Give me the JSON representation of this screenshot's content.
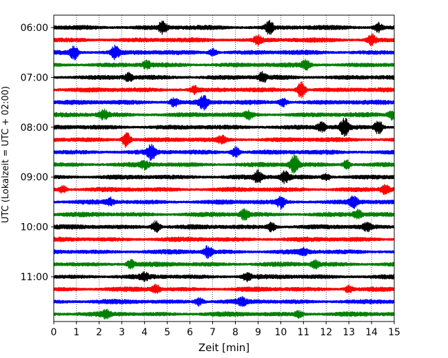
{
  "chart_data": {
    "type": "line",
    "subtype": "helicorder-seismogram",
    "xlabel": "Zeit  [min]",
    "ylabel": "UTC (Lokalzeit = UTC + 02:00)",
    "xlim": [
      0,
      15
    ],
    "x_ticks": [
      "0",
      "1",
      "2",
      "3",
      "4",
      "5",
      "6",
      "7",
      "8",
      "9",
      "10",
      "11",
      "12",
      "13",
      "14",
      "15"
    ],
    "y_ticks": [
      "06:00",
      "07:00",
      "08:00",
      "09:00",
      "10:00",
      "11:00"
    ],
    "trace_interval_min": 15,
    "first_trace_utc": "06:00",
    "trace_count": 24,
    "trace_colors": [
      "#000000",
      "#ff0000",
      "#0000ff",
      "#008000"
    ],
    "vertical_gridlines": "dotted, every 1 min",
    "events": [
      {
        "trace": 0,
        "min": 4.8,
        "amp": 1.4
      },
      {
        "trace": 0,
        "min": 9.5,
        "amp": 1.5
      },
      {
        "trace": 0,
        "min": 14.3,
        "amp": 1.0
      },
      {
        "trace": 1,
        "min": 9.0,
        "amp": 0.9
      },
      {
        "trace": 1,
        "min": 14.0,
        "amp": 1.2
      },
      {
        "trace": 2,
        "min": 0.9,
        "amp": 1.6
      },
      {
        "trace": 2,
        "min": 2.7,
        "amp": 1.4
      },
      {
        "trace": 2,
        "min": 7.0,
        "amp": 0.8
      },
      {
        "trace": 3,
        "min": 4.1,
        "amp": 0.8
      },
      {
        "trace": 3,
        "min": 11.1,
        "amp": 1.0
      },
      {
        "trace": 4,
        "min": 3.3,
        "amp": 0.9
      },
      {
        "trace": 4,
        "min": 9.2,
        "amp": 1.0
      },
      {
        "trace": 5,
        "min": 10.9,
        "amp": 2.0
      },
      {
        "trace": 5,
        "min": 6.2,
        "amp": 0.8
      },
      {
        "trace": 6,
        "min": 6.6,
        "amp": 1.5
      },
      {
        "trace": 6,
        "min": 5.3,
        "amp": 1.0
      },
      {
        "trace": 6,
        "min": 10.1,
        "amp": 0.9
      },
      {
        "trace": 7,
        "min": 2.2,
        "amp": 1.0
      },
      {
        "trace": 7,
        "min": 14.9,
        "amp": 1.1
      },
      {
        "trace": 7,
        "min": 8.6,
        "amp": 0.8
      },
      {
        "trace": 8,
        "min": 12.8,
        "amp": 2.2
      },
      {
        "trace": 8,
        "min": 14.3,
        "amp": 1.6
      },
      {
        "trace": 8,
        "min": 11.8,
        "amp": 1.0
      },
      {
        "trace": 9,
        "min": 3.2,
        "amp": 1.8
      },
      {
        "trace": 9,
        "min": 7.4,
        "amp": 0.8
      },
      {
        "trace": 10,
        "min": 4.3,
        "amp": 1.6
      },
      {
        "trace": 10,
        "min": 8.0,
        "amp": 1.2
      },
      {
        "trace": 11,
        "min": 10.6,
        "amp": 2.2
      },
      {
        "trace": 11,
        "min": 12.9,
        "amp": 1.0
      },
      {
        "trace": 11,
        "min": 4.0,
        "amp": 0.8
      },
      {
        "trace": 12,
        "min": 9.0,
        "amp": 1.4
      },
      {
        "trace": 12,
        "min": 10.2,
        "amp": 1.3
      },
      {
        "trace": 12,
        "min": 12.0,
        "amp": 0.8
      },
      {
        "trace": 13,
        "min": 14.6,
        "amp": 1.0
      },
      {
        "trace": 13,
        "min": 0.4,
        "amp": 0.8
      },
      {
        "trace": 14,
        "min": 10.0,
        "amp": 1.3
      },
      {
        "trace": 14,
        "min": 13.2,
        "amp": 1.3
      },
      {
        "trace": 14,
        "min": 2.5,
        "amp": 0.8
      },
      {
        "trace": 15,
        "min": 8.4,
        "amp": 1.1
      },
      {
        "trace": 15,
        "min": 13.4,
        "amp": 0.9
      },
      {
        "trace": 16,
        "min": 4.5,
        "amp": 1.4
      },
      {
        "trace": 16,
        "min": 9.6,
        "amp": 1.0
      },
      {
        "trace": 16,
        "min": 13.8,
        "amp": 0.8
      },
      {
        "trace": 18,
        "min": 6.8,
        "amp": 1.3
      },
      {
        "trace": 18,
        "min": 11.0,
        "amp": 0.7
      },
      {
        "trace": 19,
        "min": 3.4,
        "amp": 0.9
      },
      {
        "trace": 19,
        "min": 11.5,
        "amp": 0.8
      },
      {
        "trace": 20,
        "min": 8.5,
        "amp": 0.9
      },
      {
        "trace": 20,
        "min": 4.0,
        "amp": 0.7
      },
      {
        "trace": 21,
        "min": 4.5,
        "amp": 1.0
      },
      {
        "trace": 21,
        "min": 13.0,
        "amp": 0.8
      },
      {
        "trace": 22,
        "min": 6.4,
        "amp": 0.9
      },
      {
        "trace": 22,
        "min": 8.3,
        "amp": 0.7
      },
      {
        "trace": 23,
        "min": 2.3,
        "amp": 0.8
      },
      {
        "trace": 23,
        "min": 10.8,
        "amp": 0.7
      }
    ]
  }
}
